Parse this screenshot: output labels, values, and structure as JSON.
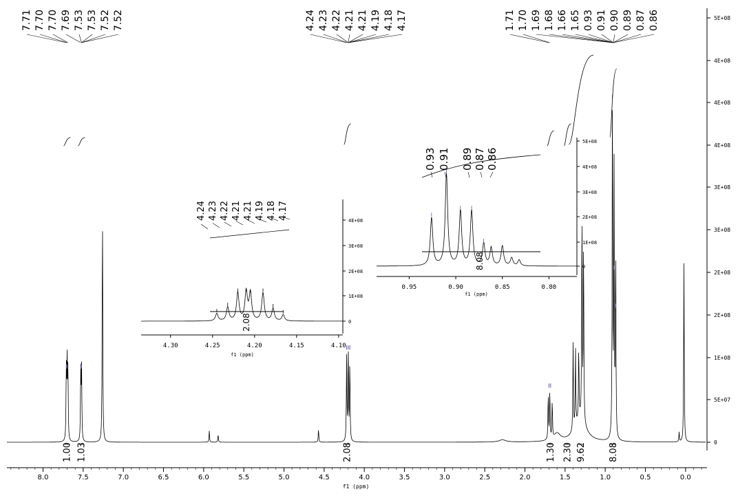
{
  "chart_data": [
    {
      "id": "main",
      "type": "line",
      "xlabel": "f1 (ppm)",
      "x_ticks": [
        "8.0",
        "7.5",
        "7.0",
        "6.5",
        "6.0",
        "5.5",
        "5.0",
        "4.5",
        "4.0",
        "3.5",
        "3.0",
        "2.5",
        "2.0",
        "1.5",
        "1.0",
        "0.5",
        "0.0"
      ],
      "y_ticks": [
        "0",
        "5E+07",
        "1E+08",
        "2E+08",
        "2E+08",
        "3E+08",
        "4E+08",
        "4E+08",
        "4E+08",
        "5E+08"
      ],
      "xlim": [
        8.45,
        -0.25
      ],
      "peak_labels": [
        {
          "group": "aromatic",
          "labels": [
            "7.71",
            "7.70",
            "7.70",
            "7.69",
            "7.53",
            "7.53",
            "7.52",
            "7.52"
          ]
        },
        {
          "group": "och2",
          "labels": [
            "4.24",
            "4.23",
            "4.22",
            "4.21",
            "4.21",
            "4.19",
            "4.18",
            "4.17"
          ]
        },
        {
          "group": "aliphatic",
          "labels": [
            "1.71",
            "1.70",
            "1.69",
            "1.68",
            "1.66",
            "1.65",
            "0.93",
            "0.91",
            "0.90",
            "0.89",
            "0.87",
            "0.86"
          ]
        }
      ],
      "integrals": [
        {
          "ppm": 7.7,
          "value": "1.00"
        },
        {
          "ppm": 7.52,
          "value": "1.03"
        },
        {
          "ppm": 4.21,
          "value": "2.08"
        },
        {
          "ppm": 1.68,
          "value": "1.30"
        },
        {
          "ppm": 1.47,
          "value": "2.30"
        },
        {
          "ppm": 1.3,
          "value": "9.62"
        },
        {
          "ppm": 0.9,
          "value": "8.08"
        }
      ],
      "peaks": [
        {
          "ppm": 7.71,
          "height": 0.195
        },
        {
          "ppm": 7.7,
          "height": 0.19
        },
        {
          "ppm": 7.69,
          "height": 0.19
        },
        {
          "ppm": 7.53,
          "height": 0.195
        },
        {
          "ppm": 7.52,
          "height": 0.185
        },
        {
          "ppm": 7.26,
          "height": 0.625
        },
        {
          "ppm": 5.93,
          "height": 0.03
        },
        {
          "ppm": 5.82,
          "height": 0.02
        },
        {
          "ppm": 4.57,
          "height": 0.035
        },
        {
          "ppm": 4.22,
          "height": 0.22
        },
        {
          "ppm": 4.2,
          "height": 0.25
        },
        {
          "ppm": 4.18,
          "height": 0.21
        },
        {
          "ppm": 1.71,
          "height": 0.12
        },
        {
          "ppm": 1.69,
          "height": 0.13
        },
        {
          "ppm": 1.66,
          "height": 0.1
        },
        {
          "ppm": 1.4,
          "height": 0.23
        },
        {
          "ppm": 1.37,
          "height": 0.2
        },
        {
          "ppm": 1.33,
          "height": 0.19
        },
        {
          "ppm": 1.29,
          "height": 0.55
        },
        {
          "ppm": 1.27,
          "height": 0.48
        },
        {
          "ppm": 0.91,
          "height": 0.95
        },
        {
          "ppm": 0.89,
          "height": 0.7
        },
        {
          "ppm": 0.87,
          "height": 0.5
        },
        {
          "ppm": 0.02,
          "height": 0.47
        },
        {
          "ppm": 0.08,
          "height": 0.025
        }
      ]
    },
    {
      "id": "inset_och2",
      "type": "line",
      "xlabel": "f1 (ppm)",
      "x_ticks": [
        "4.30",
        "4.25",
        "4.20",
        "4.15",
        "4.10"
      ],
      "y_ticks": [
        "0",
        "1E+08",
        "2E+08",
        "3E+08",
        "4E+08"
      ],
      "xlim": [
        4.335,
        4.095
      ],
      "peak_labels": [
        "4.24",
        "4.23",
        "4.22",
        "4.21",
        "4.21",
        "4.19",
        "4.18",
        "4.17"
      ],
      "integral": "2.08",
      "peaks": [
        {
          "ppm": 4.245,
          "height": 0.12
        },
        {
          "ppm": 4.232,
          "height": 0.22
        },
        {
          "ppm": 4.22,
          "height": 0.45
        },
        {
          "ppm": 4.21,
          "height": 0.46
        },
        {
          "ppm": 4.205,
          "height": 0.44
        },
        {
          "ppm": 4.19,
          "height": 0.45
        },
        {
          "ppm": 4.178,
          "height": 0.2
        },
        {
          "ppm": 4.166,
          "height": 0.1
        }
      ]
    },
    {
      "id": "inset_ch3",
      "type": "line",
      "xlabel": "f1 (ppm)",
      "x_ticks": [
        "0.95",
        "0.90",
        "0.85",
        "0.80"
      ],
      "y_ticks": [
        "0",
        "1E+08",
        "2E+08",
        "3E+08",
        "4E+08",
        "5E+08"
      ],
      "xlim": [
        0.985,
        0.77
      ],
      "peak_labels": [
        "0.93",
        "0.91",
        "0.89",
        "0.87",
        "0.86"
      ],
      "integral": "8.08",
      "peaks": [
        {
          "ppm": 0.926,
          "height": 0.48
        },
        {
          "ppm": 0.91,
          "height": 0.92
        },
        {
          "ppm": 0.895,
          "height": 0.55
        },
        {
          "ppm": 0.883,
          "height": 0.55
        },
        {
          "ppm": 0.87,
          "height": 0.22
        },
        {
          "ppm": 0.862,
          "height": 0.18
        },
        {
          "ppm": 0.85,
          "height": 0.2
        },
        {
          "ppm": 0.84,
          "height": 0.08
        },
        {
          "ppm": 0.832,
          "height": 0.06
        }
      ]
    }
  ],
  "colors": {
    "trace": "#000000",
    "peak_marker": "#5a5aa8",
    "integral_curve": "#000000"
  }
}
